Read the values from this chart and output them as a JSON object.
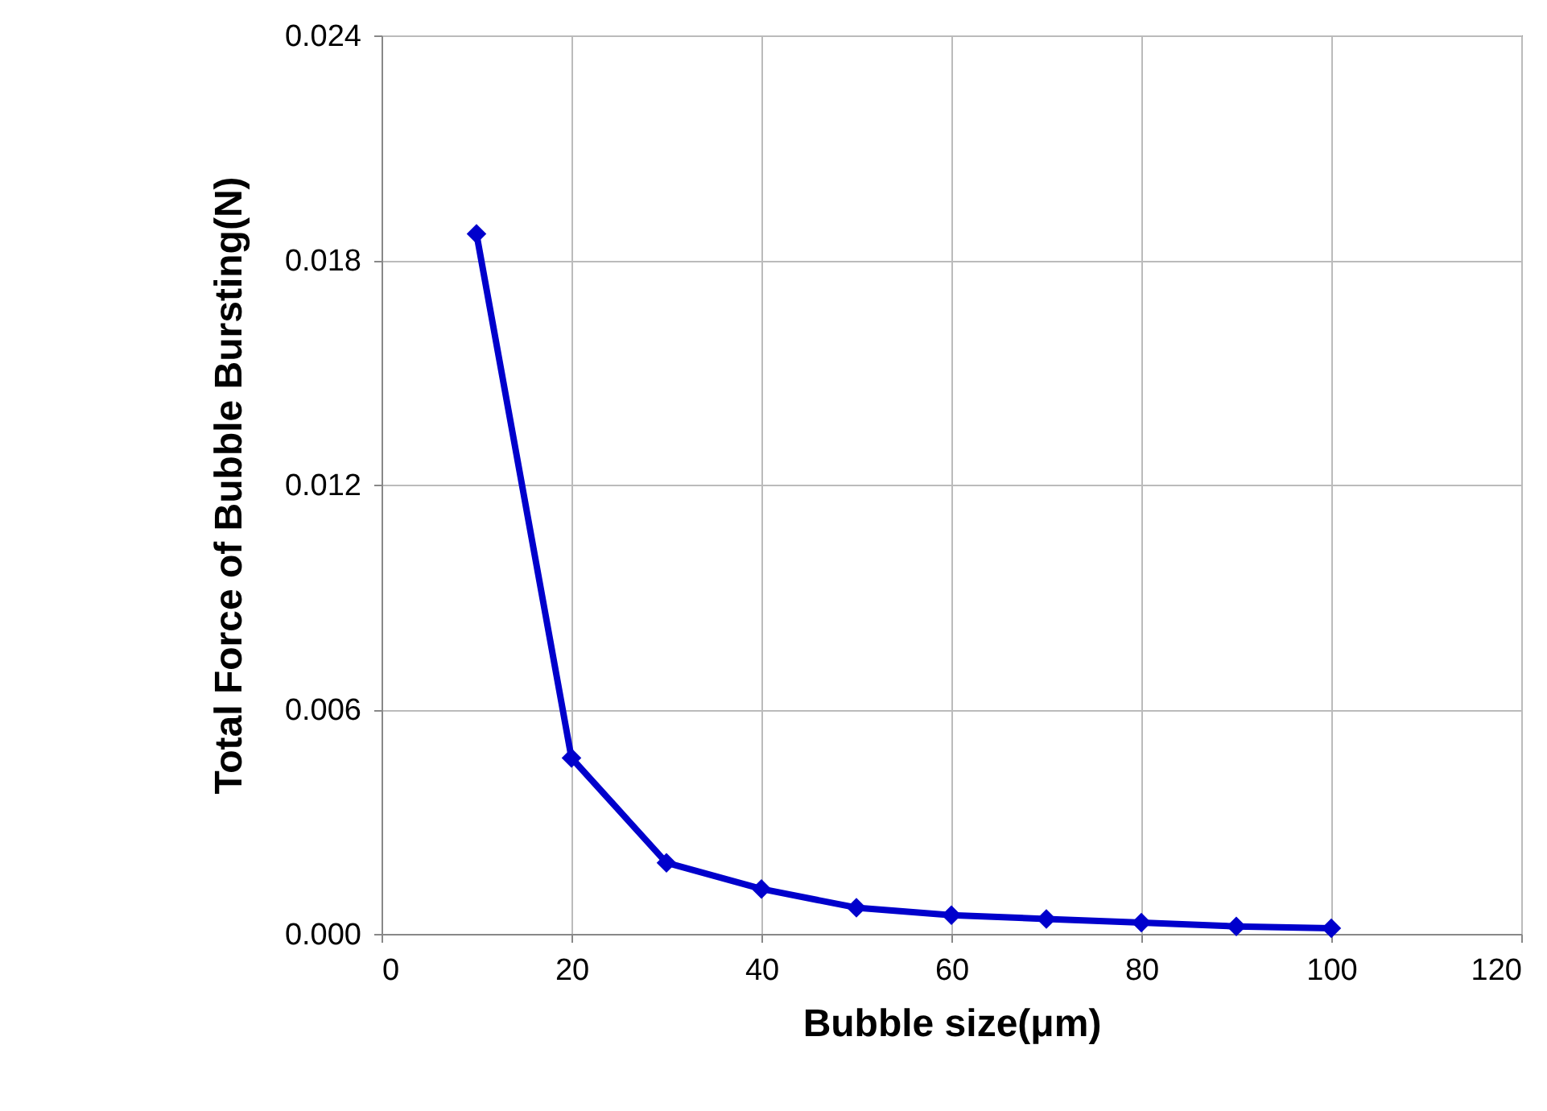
{
  "chart_data": {
    "type": "line",
    "xlabel": "Bubble size(μm)",
    "ylabel": "Total Force of Bubble Bursting(N)",
    "x": [
      10,
      20,
      30,
      40,
      50,
      60,
      70,
      80,
      90,
      100
    ],
    "series": [
      {
        "color": "#0000cc",
        "values": [
          0.0187,
          0.0047,
          0.0019,
          0.0012,
          0.0007,
          0.0005,
          0.0004,
          0.0003,
          0.0002,
          0.00015
        ]
      }
    ],
    "xlim": [
      0,
      120
    ],
    "xticks": [
      0,
      20,
      40,
      60,
      80,
      100,
      120
    ],
    "ylim": [
      0,
      0.024
    ],
    "yticks": [
      {
        "value": 0,
        "label": "0.000"
      },
      {
        "value": 0.006,
        "label": "0.006"
      },
      {
        "value": 0.012,
        "label": "0.012"
      },
      {
        "value": 0.018,
        "label": "0.018"
      },
      {
        "value": 0.024,
        "label": "0.024"
      }
    ],
    "grid": true,
    "marker": "diamond",
    "line_style": "solid"
  }
}
